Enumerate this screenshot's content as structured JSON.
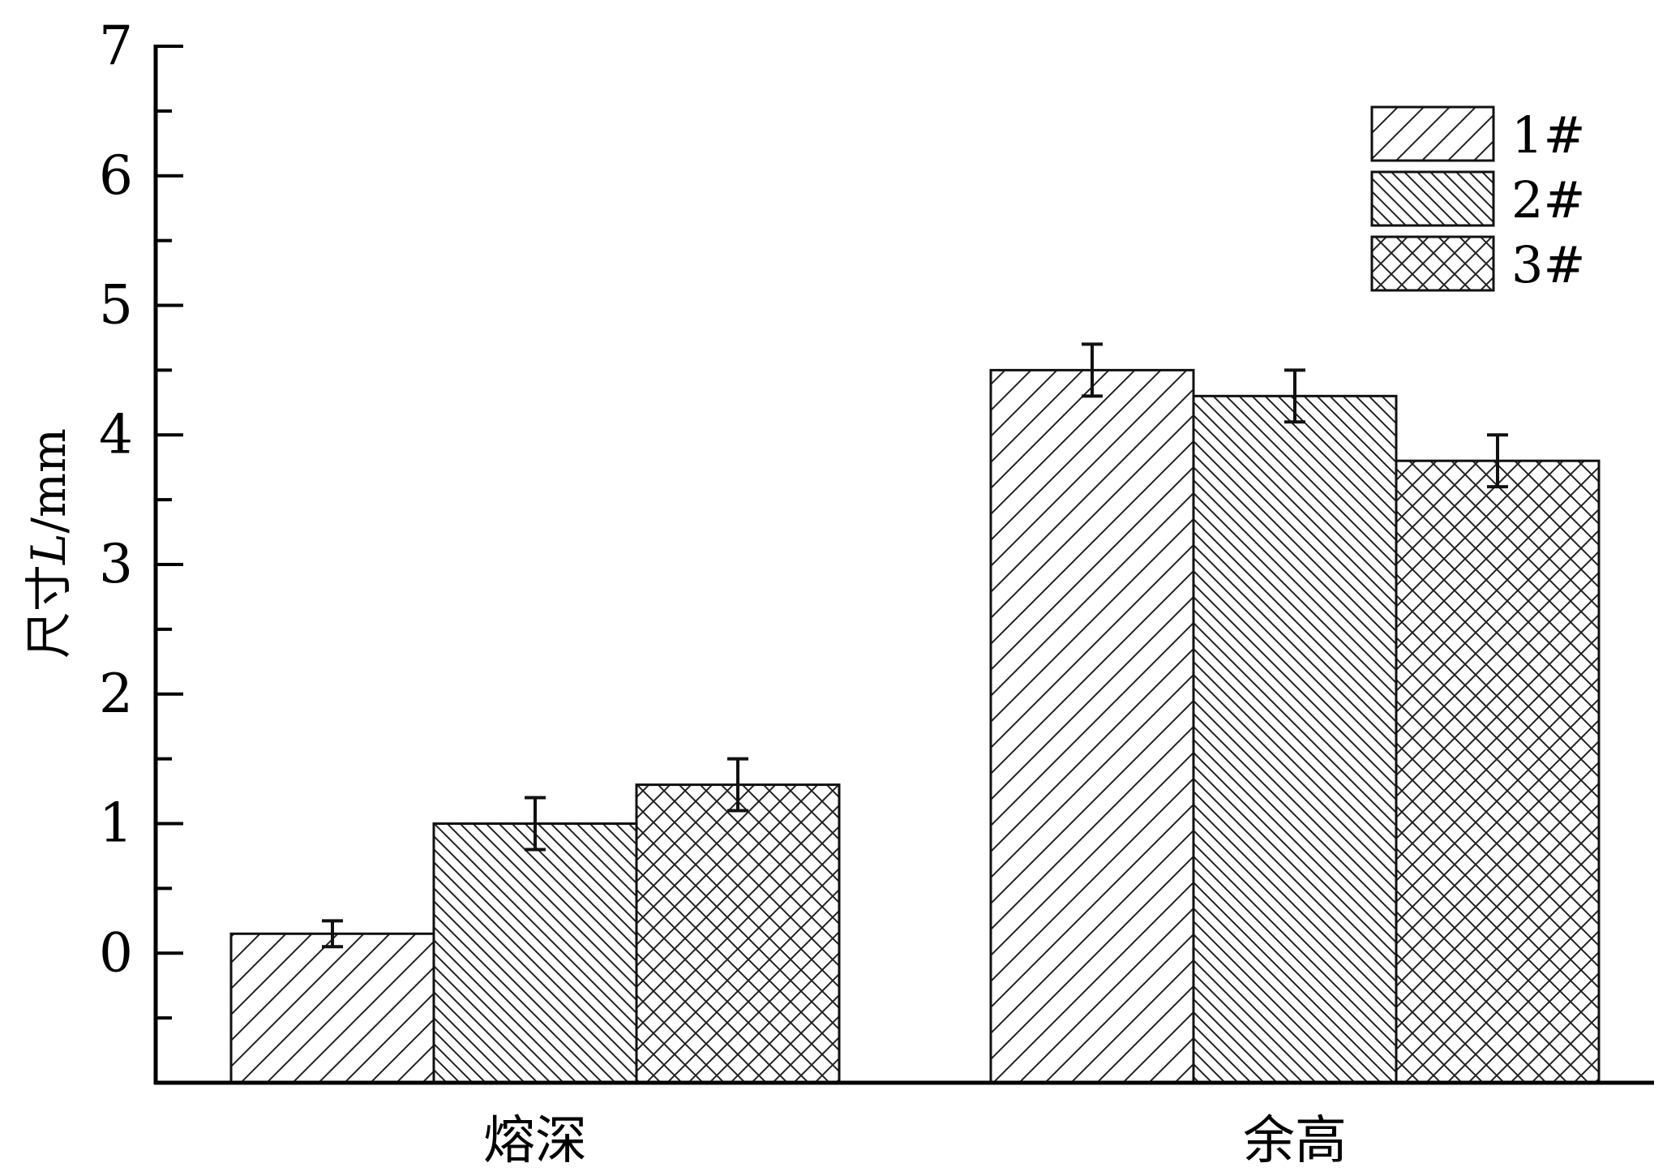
{
  "chart_data": {
    "type": "bar",
    "title": "",
    "xlabel": "",
    "ylabel": {
      "prefix": "尺寸",
      "italic": "L",
      "suffix": "/mm"
    },
    "ylim": [
      -1,
      7
    ],
    "yticks": [
      "0",
      "1",
      "2",
      "3",
      "4",
      "5",
      "6",
      "7"
    ],
    "categories": [
      "熔深",
      "余高"
    ],
    "legend_position": "top-right",
    "grid": false,
    "error_bars": true,
    "series": [
      {
        "name": "1#",
        "pattern": "diagonal-forward",
        "values": [
          0.15,
          4.5
        ],
        "errors": [
          0.1,
          0.2
        ]
      },
      {
        "name": "2#",
        "pattern": "diagonal-backward",
        "values": [
          1.0,
          4.3
        ],
        "errors": [
          0.2,
          0.2
        ]
      },
      {
        "name": "3#",
        "pattern": "crosshatch",
        "values": [
          1.3,
          3.8
        ],
        "errors": [
          0.2,
          0.2
        ]
      }
    ]
  }
}
